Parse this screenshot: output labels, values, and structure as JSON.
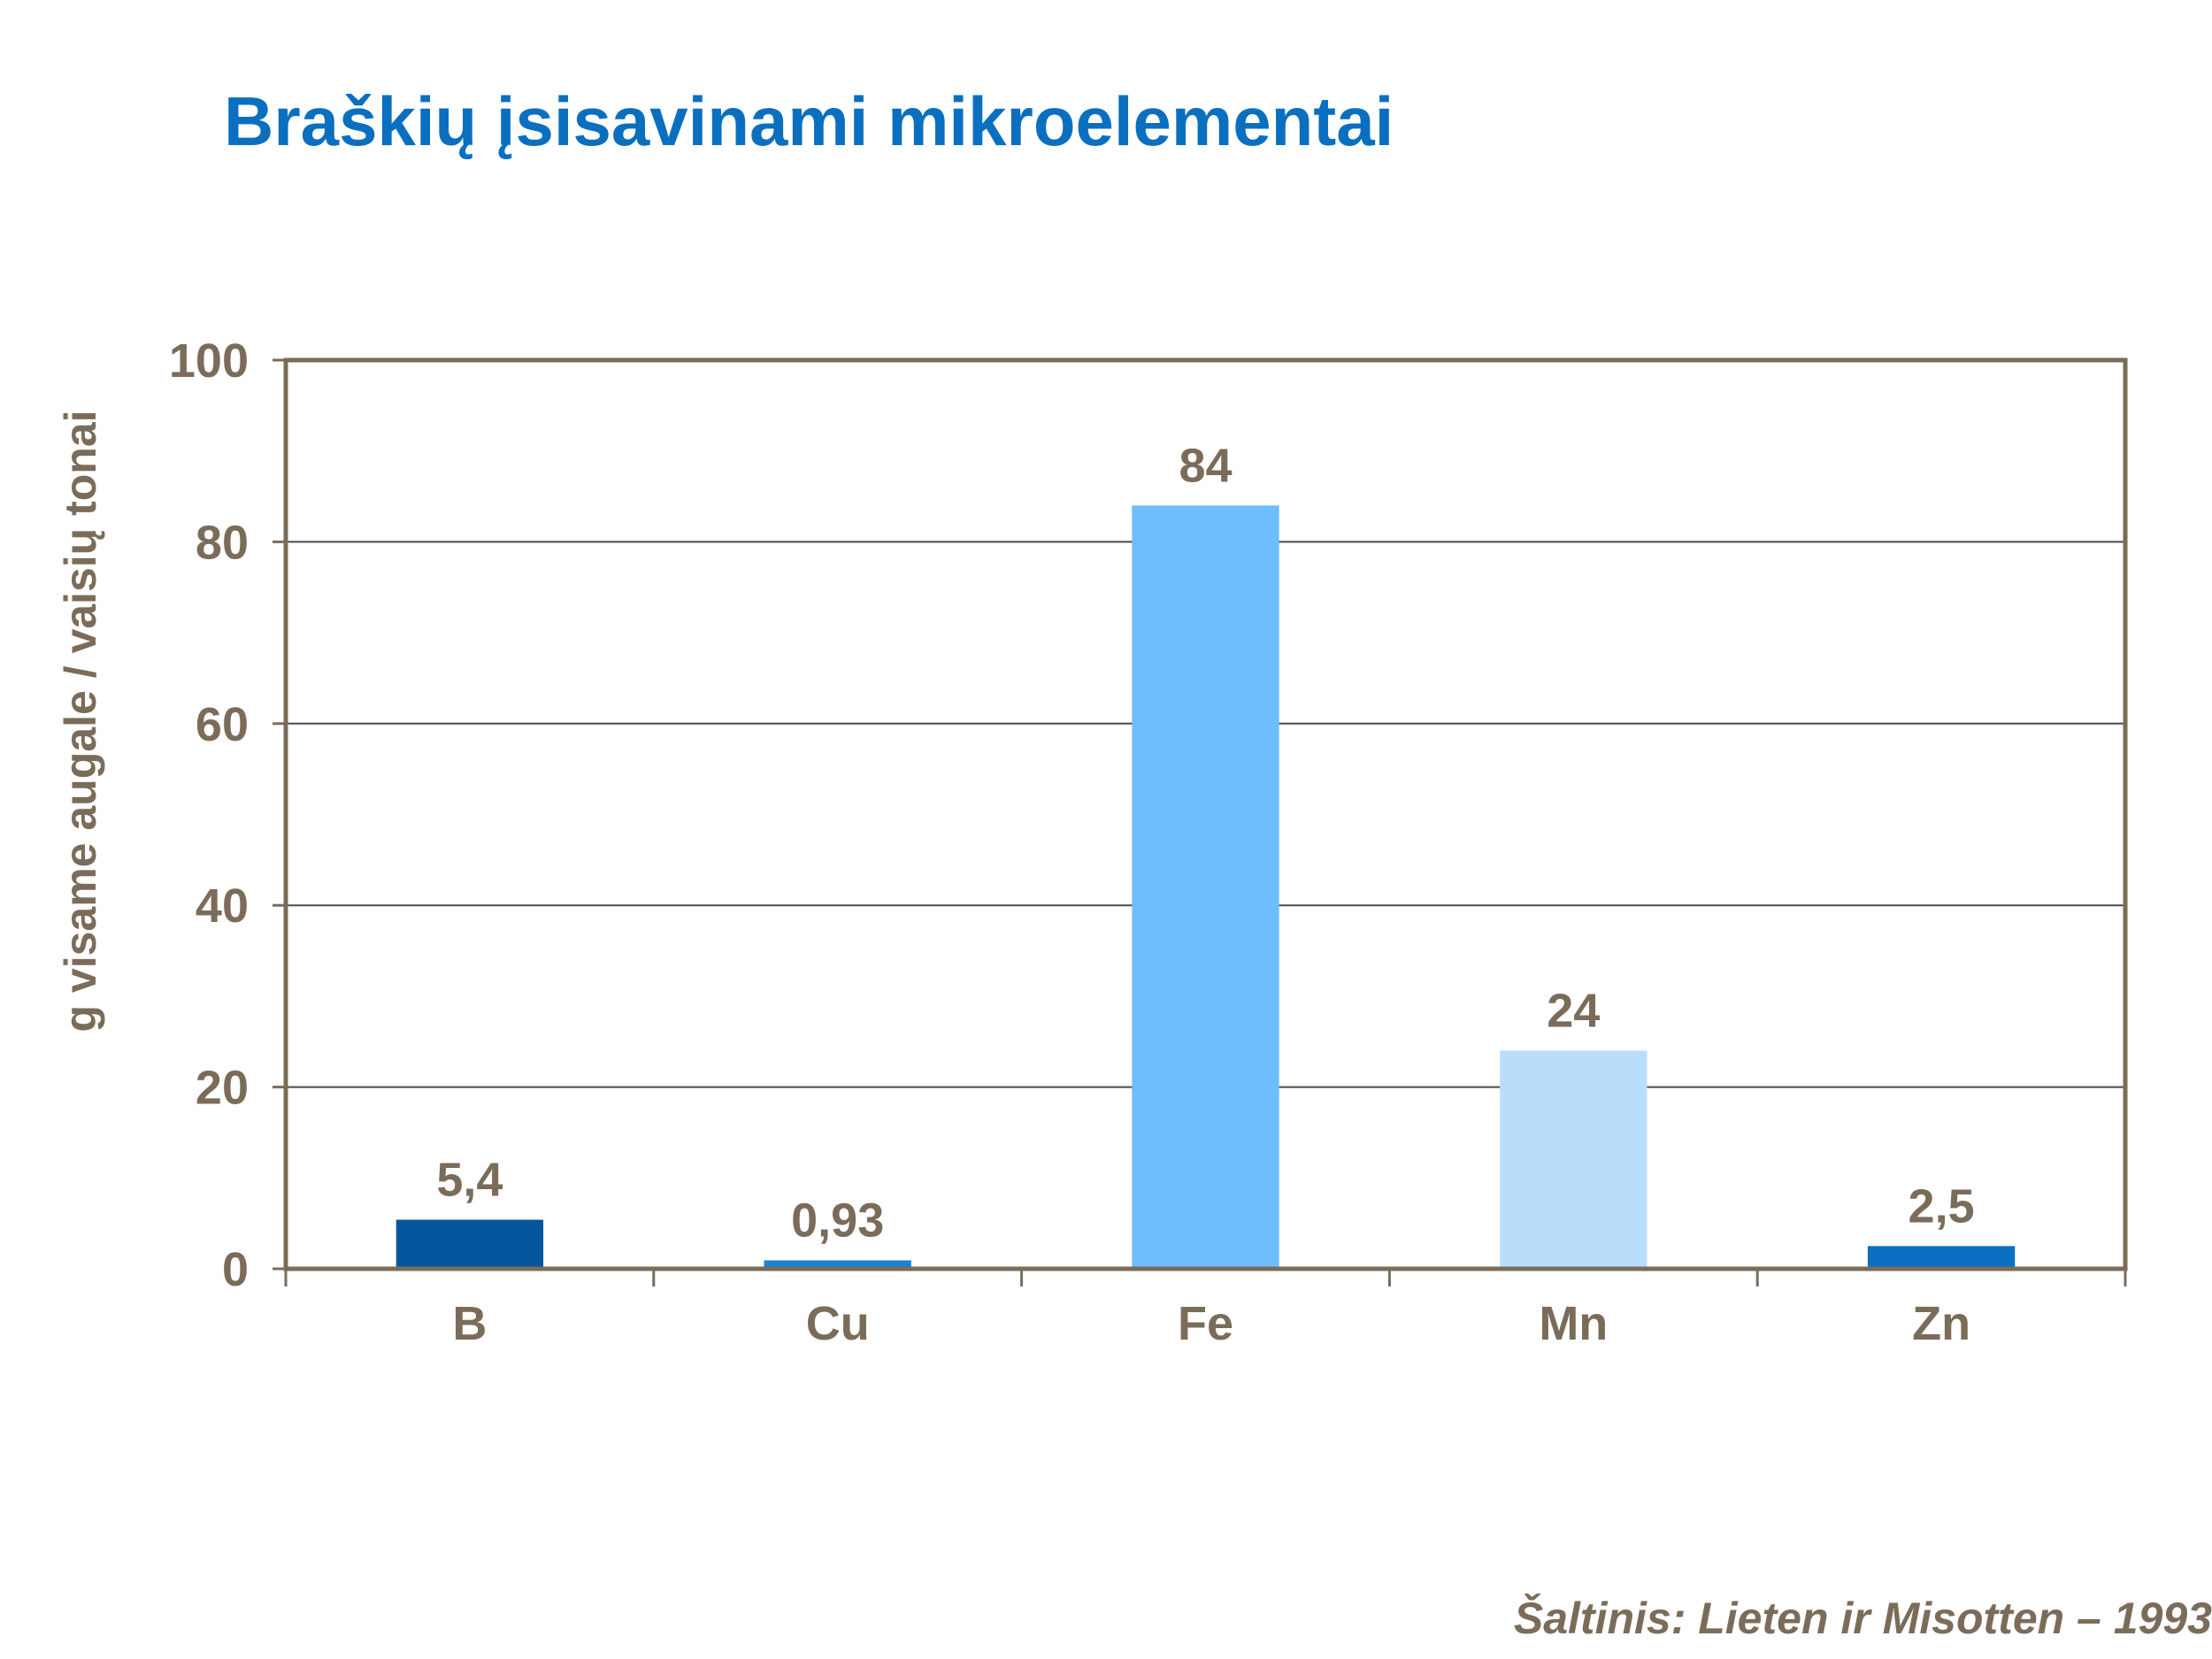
{
  "slide": {
    "title": "Braškių įsisavinami mikroelementai",
    "source": "Šaltinis:  Lieten ir Misotten – 1993"
  },
  "chart_data": {
    "type": "bar",
    "title": "",
    "xlabel": "",
    "ylabel": "g visame augale / vaisių tonai",
    "categories": [
      "B",
      "Cu",
      "Fe",
      "Mn",
      "Zn"
    ],
    "values": [
      5.4,
      0.93,
      84,
      24,
      2.5
    ],
    "data_labels": [
      "5,4",
      "0,93",
      "84",
      "24",
      "2,5"
    ],
    "bar_colors": [
      "#03569c",
      "#1a82d6",
      "#6cbefc",
      "#b9defc",
      "#0a6fc2"
    ],
    "ylim": [
      0,
      100
    ],
    "yticks": [
      0,
      20,
      40,
      60,
      80,
      100
    ],
    "ytick_labels": [
      "0",
      "20",
      "40",
      "60",
      "80",
      "100"
    ],
    "grid": true,
    "legend": "none",
    "colors": {
      "axis": "#7b6c5a",
      "text": "#7b6c5a",
      "grid": "#4a4a4a"
    }
  }
}
